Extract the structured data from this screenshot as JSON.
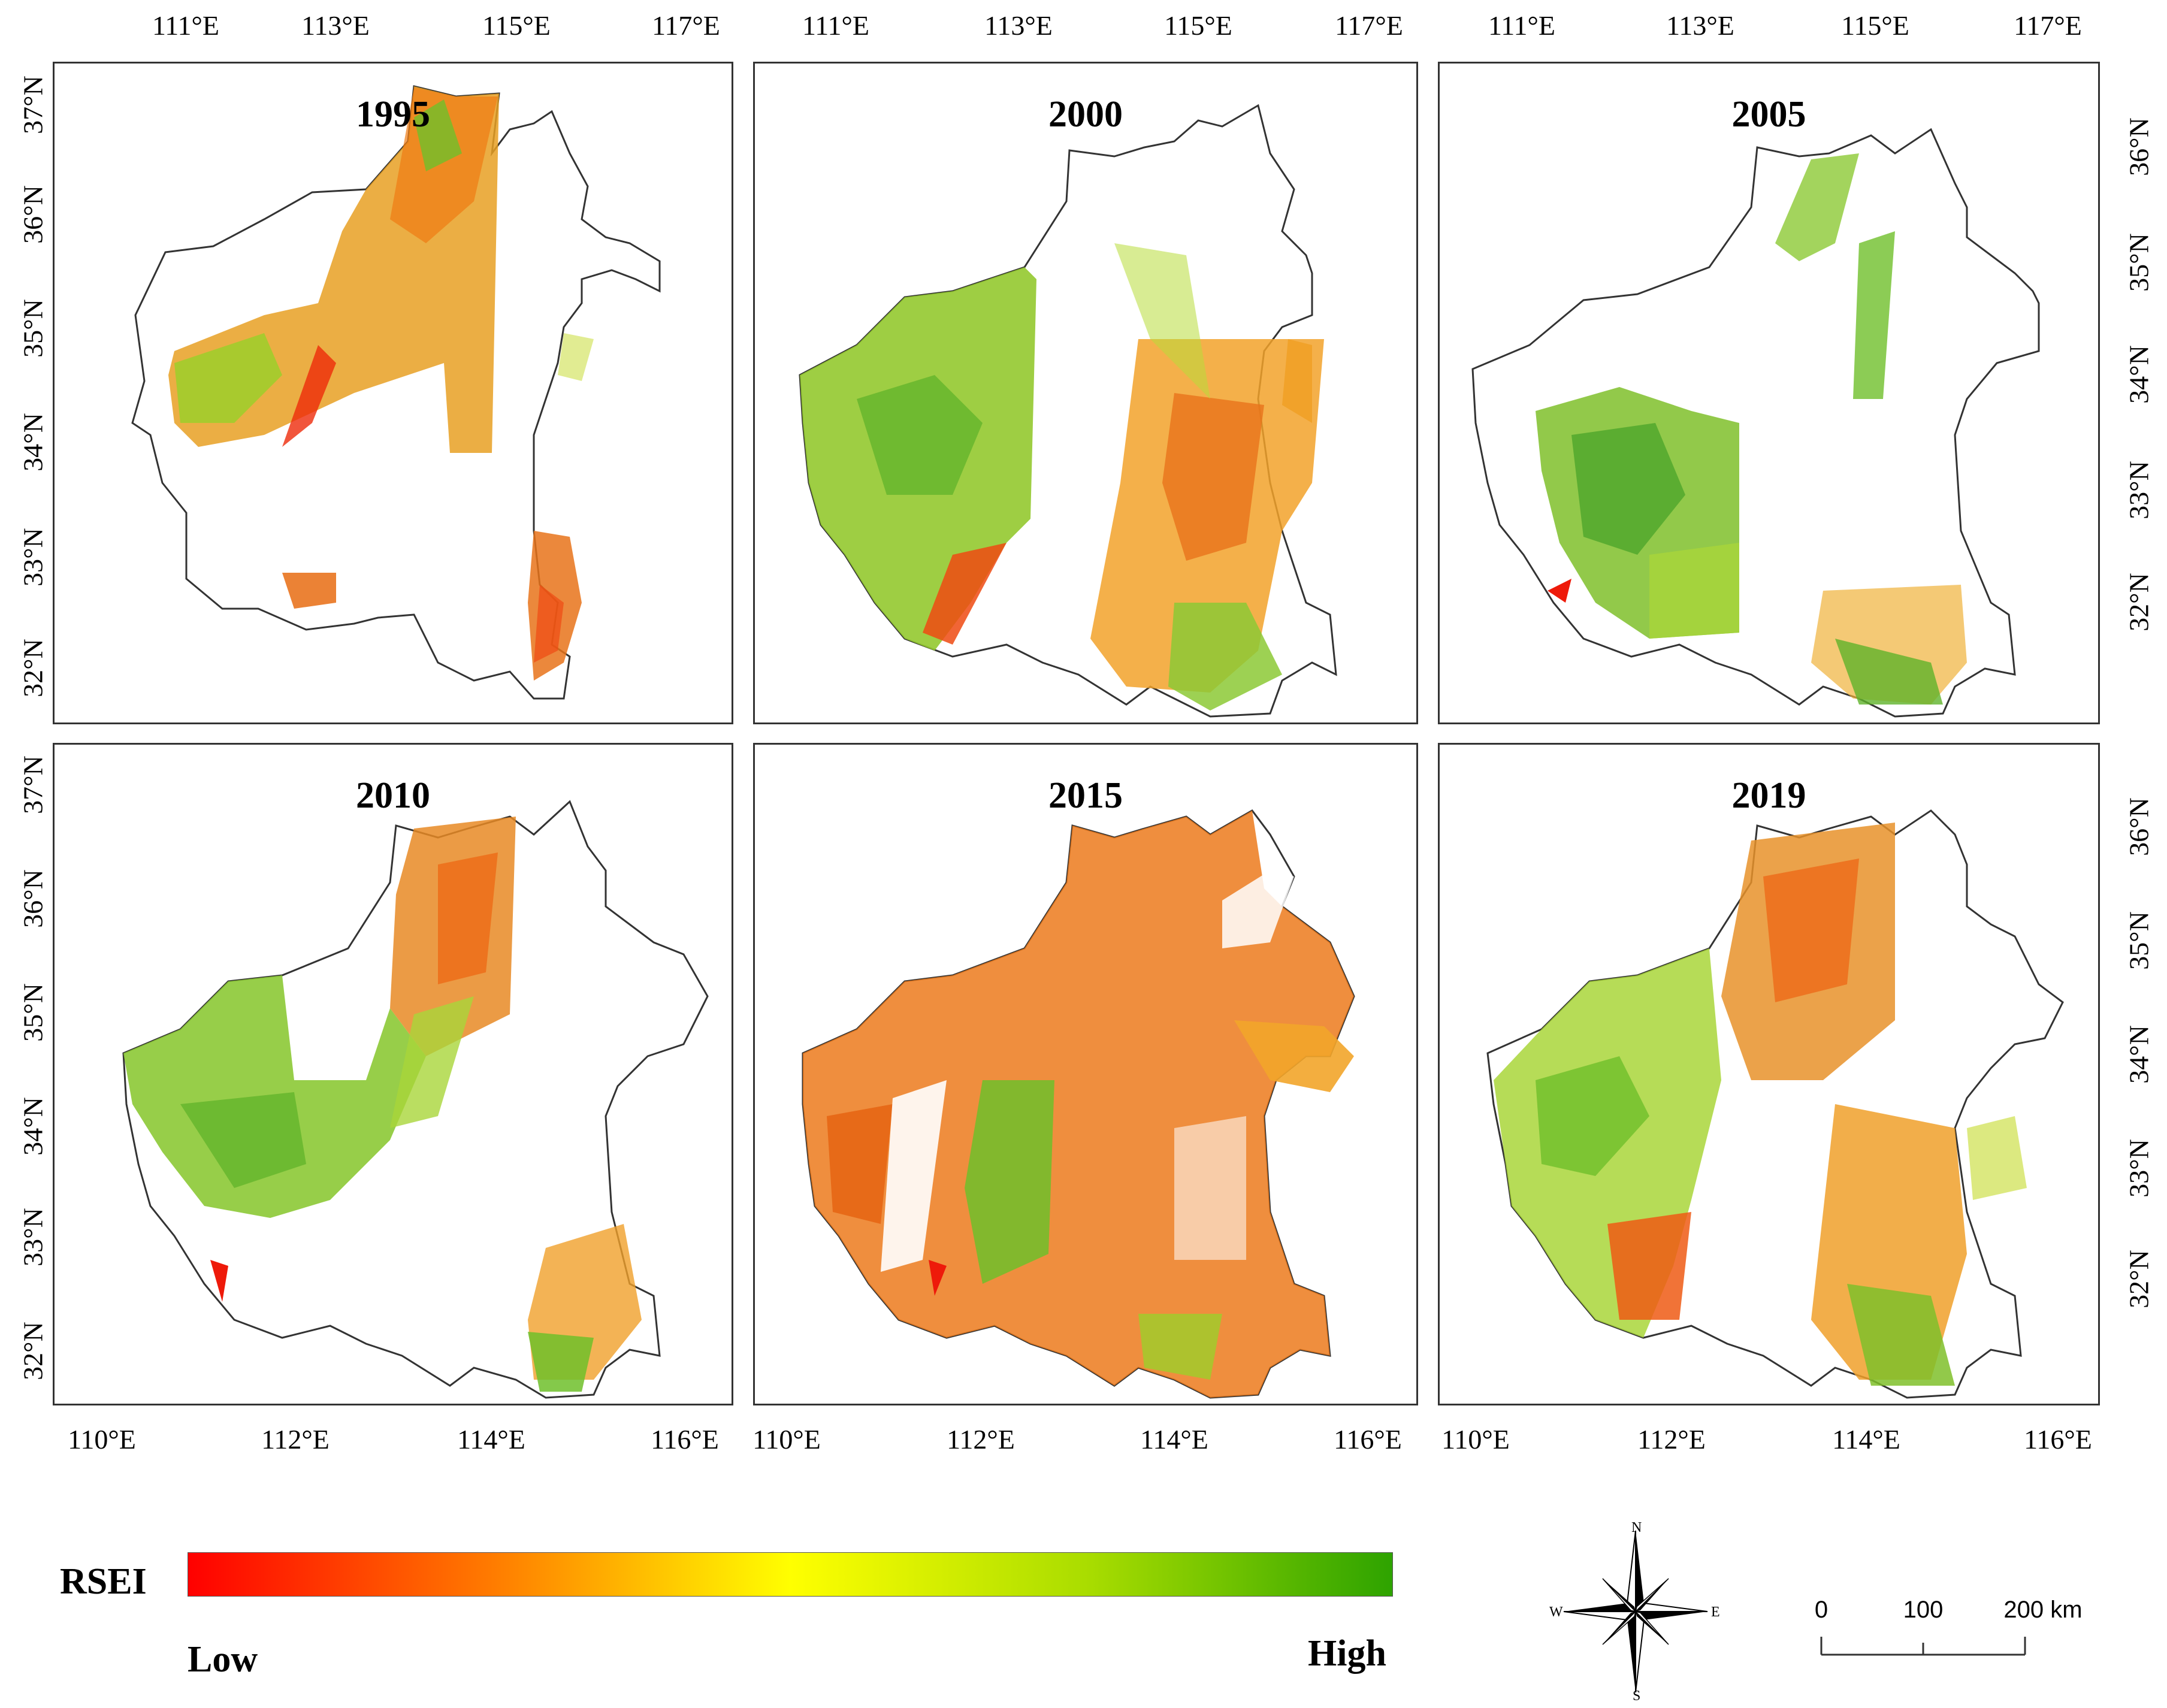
{
  "top_lon_labels": [
    "111°E",
    "113°E",
    "115°E",
    "117°E",
    "111°E",
    "113°E",
    "115°E",
    "117°E",
    "111°E",
    "113°E",
    "115°E",
    "117°E"
  ],
  "bottom_lon_labels": [
    "110°E",
    "112°E",
    "114°E",
    "116°E",
    "110°E",
    "112°E",
    "114°E",
    "116°E",
    "110°E",
    "112°E",
    "114°E",
    "116°E"
  ],
  "left_lat_labels_top": [
    "37°N",
    "36°N",
    "35°N",
    "34°N",
    "33°N",
    "32°N"
  ],
  "left_lat_labels_bottom": [
    "37°N",
    "36°N",
    "35°N",
    "34°N",
    "33°N",
    "32°N"
  ],
  "right_lat_labels_top": [
    "36°N",
    "35°N",
    "34°N",
    "33°N",
    "32°N"
  ],
  "right_lat_labels_bottom": [
    "36°N",
    "35°N",
    "34°N",
    "33°N",
    "32°N"
  ],
  "panels": [
    {
      "year": "1995"
    },
    {
      "year": "2000"
    },
    {
      "year": "2005"
    },
    {
      "year": "2010"
    },
    {
      "year": "2015"
    },
    {
      "year": "2019"
    }
  ],
  "legend": {
    "title": "RSEI",
    "low_label": "Low",
    "high_label": "High",
    "colors": {
      "low": "#ff0000",
      "mid_low": "#ff7a00",
      "mid": "#ffff00",
      "mid_high": "#a8dc00",
      "high": "#2ea300"
    }
  },
  "compass": {
    "north": "N",
    "south": "S",
    "east": "E",
    "west": "W"
  },
  "scale_bar": {
    "labels": [
      "0",
      "100",
      "200 km"
    ]
  }
}
